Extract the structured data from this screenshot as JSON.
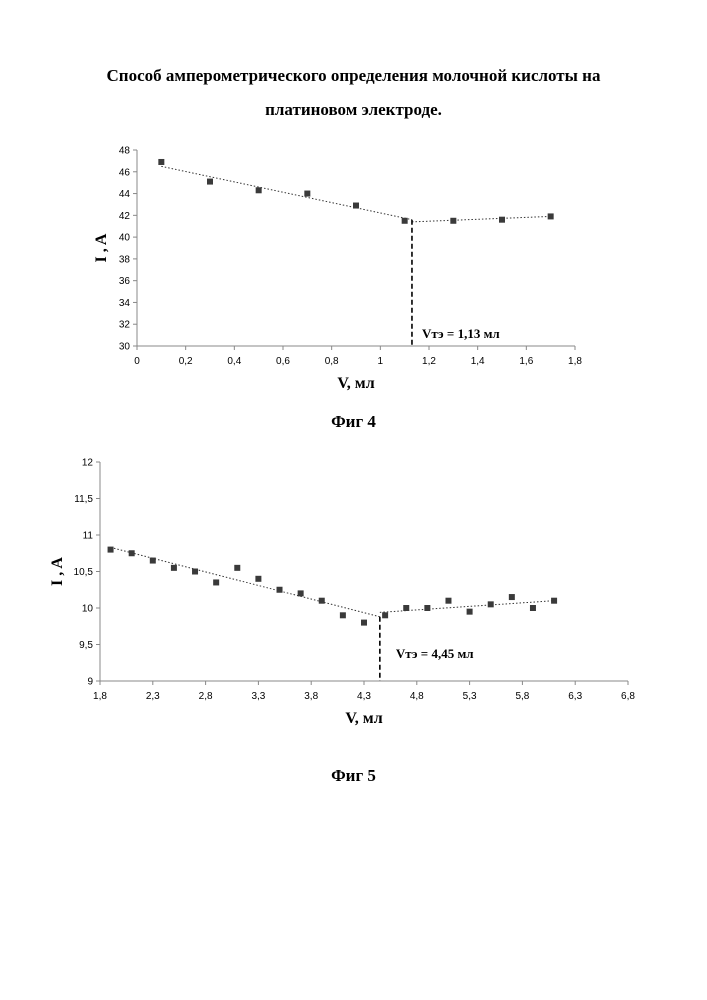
{
  "document": {
    "title_line1": "Способ амперометрического определения молочной кислоты на",
    "title_line2": "платиновом электроде."
  },
  "chart_data": [
    {
      "type": "scatter",
      "caption": "Фиг 4",
      "xlabel": "V, мл",
      "ylabel": "I , A",
      "xlim": [
        0,
        1.8
      ],
      "ylim": [
        30,
        48
      ],
      "xticks": [
        0,
        0.2,
        0.4,
        0.6,
        0.8,
        1,
        1.2,
        1.4,
        1.6,
        1.8
      ],
      "xtick_labels": [
        "0",
        "0,2",
        "0,4",
        "0,6",
        "0,8",
        "1",
        "1,2",
        "1,4",
        "1,6",
        "1,8"
      ],
      "yticks": [
        30,
        32,
        34,
        36,
        38,
        40,
        42,
        44,
        46,
        48
      ],
      "ytick_labels": [
        "30",
        "32",
        "34",
        "36",
        "38",
        "40",
        "42",
        "44",
        "46",
        "48"
      ],
      "grid": false,
      "series": [
        {
          "name": "I",
          "x": [
            0.1,
            0.3,
            0.5,
            0.7,
            0.9,
            1.1,
            1.3,
            1.5,
            1.7
          ],
          "y": [
            46.9,
            45.1,
            44.3,
            44.0,
            42.9,
            41.5,
            41.5,
            41.6,
            41.9
          ]
        }
      ],
      "trendlines": [
        {
          "x": [
            0.1,
            1.13
          ],
          "y": [
            46.5,
            41.6
          ]
        },
        {
          "x": [
            1.13,
            1.7
          ],
          "y": [
            41.4,
            41.9
          ]
        }
      ],
      "vline": {
        "x": 1.13,
        "y_top": 41.6
      },
      "annotation": "Vтэ = 1,13 мл"
    },
    {
      "type": "scatter",
      "caption": "Фиг 5",
      "xlabel": "V, мл",
      "ylabel": "I , A",
      "xlim": [
        1.8,
        6.8
      ],
      "ylim": [
        9,
        12
      ],
      "xticks": [
        1.8,
        2.3,
        2.8,
        3.3,
        3.8,
        4.3,
        4.8,
        5.3,
        5.8,
        6.3,
        6.8
      ],
      "xtick_labels": [
        "1,8",
        "2,3",
        "2,8",
        "3,3",
        "3,8",
        "4,3",
        "4,8",
        "5,3",
        "5,8",
        "6,3",
        "6,8"
      ],
      "yticks": [
        9,
        9.5,
        10,
        10.5,
        11,
        11.5,
        12
      ],
      "ytick_labels": [
        "9",
        "9,5",
        "10",
        "10,5",
        "11",
        "11,5",
        "12"
      ],
      "grid": false,
      "series": [
        {
          "name": "I",
          "x": [
            1.9,
            2.1,
            2.3,
            2.5,
            2.7,
            2.9,
            3.1,
            3.3,
            3.5,
            3.7,
            3.9,
            4.1,
            4.3,
            4.5,
            4.7,
            4.9,
            5.1,
            5.3,
            5.5,
            5.7,
            5.9,
            6.1
          ],
          "y": [
            10.8,
            10.75,
            10.65,
            10.55,
            10.5,
            10.35,
            10.55,
            10.4,
            10.25,
            10.2,
            10.1,
            9.9,
            9.8,
            9.9,
            10.0,
            10.0,
            10.1,
            9.95,
            10.05,
            10.15,
            10.0,
            10.1
          ]
        }
      ],
      "trendlines": [
        {
          "x": [
            1.9,
            4.45
          ],
          "y": [
            10.83,
            9.88
          ]
        },
        {
          "x": [
            4.45,
            6.1
          ],
          "y": [
            9.94,
            10.1
          ]
        }
      ],
      "vline": {
        "x": 4.45,
        "y_top": 9.88
      },
      "annotation": "Vтэ = 4,45 мл"
    }
  ]
}
